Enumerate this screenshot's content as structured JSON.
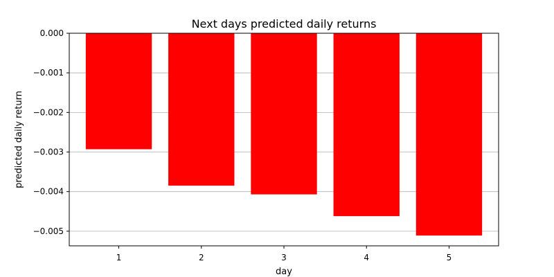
{
  "chart_data": {
    "type": "bar",
    "title": "Next days predicted daily returns",
    "xlabel": "day",
    "ylabel": "predicted daily return",
    "categories": [
      "1",
      "2",
      "3",
      "4",
      "5"
    ],
    "values": [
      -0.00293,
      -0.00385,
      -0.00407,
      -0.00462,
      -0.00511
    ],
    "ylim": [
      -0.00537,
      0.0
    ],
    "yticks": [
      0.0,
      -0.001,
      -0.002,
      -0.003,
      -0.004,
      -0.005
    ],
    "ytick_labels": [
      "0.000",
      "−0.001",
      "−0.002",
      "−0.003",
      "−0.004",
      "−0.005"
    ],
    "bar_color": "#ff0000",
    "grid": "y",
    "legend": "none"
  }
}
